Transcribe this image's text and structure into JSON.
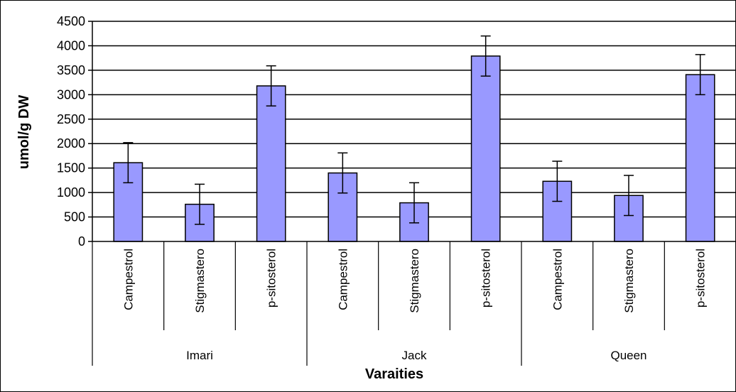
{
  "chart_data": {
    "type": "bar",
    "title": "",
    "xlabel": "Varaities",
    "ylabel": "umol/g DW",
    "ylim": [
      0,
      4500
    ],
    "yticks": [
      0,
      500,
      1000,
      1500,
      2000,
      2500,
      3000,
      3500,
      4000,
      4500
    ],
    "grid": true,
    "groups": [
      {
        "name": "Imari",
        "categories": [
          "Campestrol",
          "Stigmastero",
          "p-sitosterol"
        ],
        "values": [
          1610,
          760,
          3180
        ],
        "errors": [
          410,
          410,
          410
        ]
      },
      {
        "name": "Jack",
        "categories": [
          "Campestrol",
          "Stigmastero",
          "p-sitosterol"
        ],
        "values": [
          1400,
          790,
          3790
        ],
        "errors": [
          410,
          410,
          410
        ]
      },
      {
        "name": "Queen",
        "categories": [
          "Campestrol",
          "Stigmastero",
          "p-sitosterol"
        ],
        "values": [
          1230,
          940,
          3410
        ],
        "errors": [
          410,
          410,
          410
        ]
      }
    ],
    "bar_color": "#9999ff",
    "bar_stroke": "#000000"
  }
}
